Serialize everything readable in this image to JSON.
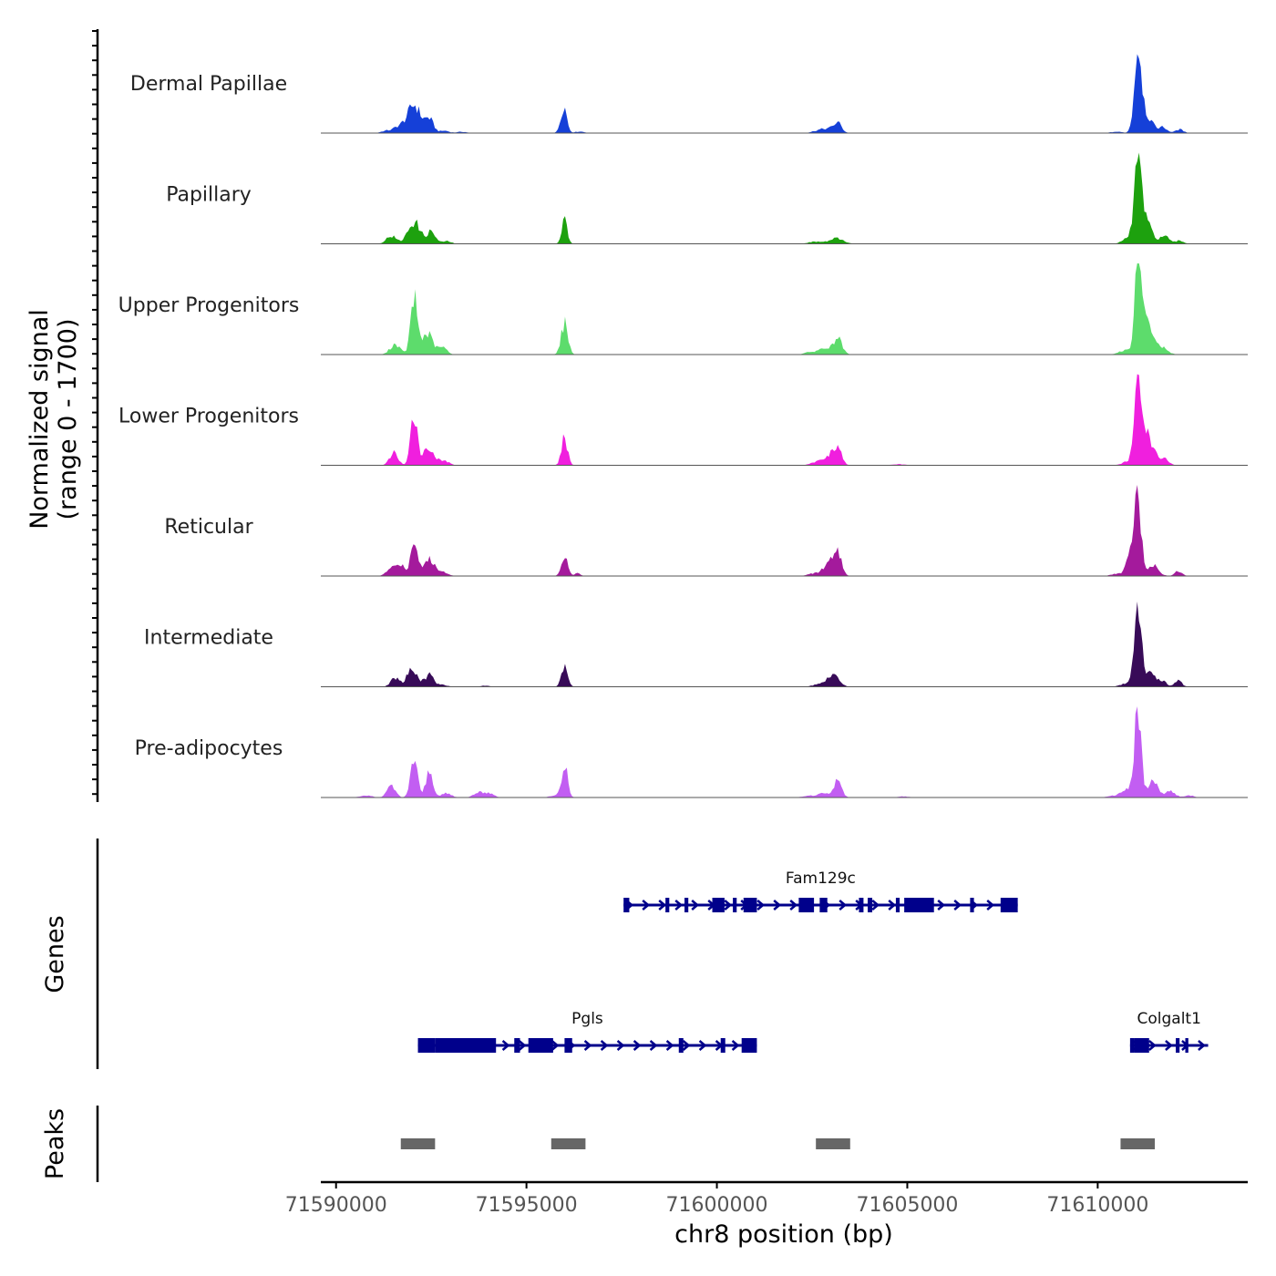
{
  "chart_data": {
    "type": "area",
    "title": "",
    "ylabel_line1": "Normalized signal",
    "ylabel_line2": "(range 0 - 1700)",
    "ylim": [
      0,
      1700
    ],
    "xlabel": "chr8 position (bp)",
    "xlim": [
      71589600,
      71613940
    ],
    "xticks": [
      71590000,
      71595000,
      71600000,
      71605000,
      71610000
    ],
    "xtick_labels": [
      "71590000",
      "71595000",
      "71600000",
      "71605000",
      "71610000"
    ],
    "tracks": [
      {
        "name": "Dermal Papillae",
        "color": "#1540D8",
        "peaks": [
          [
            71591300,
            40,
            120
          ],
          [
            71591650,
            120,
            150
          ],
          [
            71592050,
            540,
            170
          ],
          [
            71592450,
            260,
            110
          ],
          [
            71592850,
            45,
            120
          ],
          [
            71593300,
            25,
            120
          ],
          [
            71595980,
            520,
            80
          ],
          [
            71596400,
            30,
            120
          ],
          [
            71602650,
            40,
            150
          ],
          [
            71602950,
            80,
            180
          ],
          [
            71603180,
            170,
            100
          ],
          [
            71610500,
            25,
            150
          ],
          [
            71611060,
            1620,
            95
          ],
          [
            71611300,
            300,
            140
          ],
          [
            71611700,
            110,
            120
          ],
          [
            71612150,
            70,
            100
          ]
        ]
      },
      {
        "name": "Papillary",
        "color": "#1DA10E",
        "peaks": [
          [
            71591450,
            150,
            130
          ],
          [
            71592050,
            420,
            160
          ],
          [
            71592500,
            230,
            110
          ],
          [
            71592900,
            50,
            120
          ],
          [
            71596000,
            480,
            70
          ],
          [
            71602600,
            40,
            200
          ],
          [
            71603150,
            100,
            180
          ],
          [
            71610800,
            100,
            150
          ],
          [
            71611060,
            1680,
            95
          ],
          [
            71611300,
            360,
            140
          ],
          [
            71611750,
            150,
            120
          ],
          [
            71612150,
            60,
            100
          ]
        ]
      },
      {
        "name": "Upper Progenitors",
        "color": "#5DDC6C",
        "peaks": [
          [
            71591550,
            200,
            130
          ],
          [
            71592050,
            1050,
            90
          ],
          [
            71592400,
            400,
            140
          ],
          [
            71592800,
            140,
            110
          ],
          [
            71596000,
            600,
            90
          ],
          [
            71602450,
            40,
            150
          ],
          [
            71602850,
            120,
            180
          ],
          [
            71603180,
            280,
            110
          ],
          [
            71610700,
            80,
            150
          ],
          [
            71611060,
            1780,
            85
          ],
          [
            71611300,
            600,
            160
          ],
          [
            71611700,
            120,
            140
          ]
        ]
      },
      {
        "name": "Lower Progenitors",
        "color": "#F01FDE",
        "peaks": [
          [
            71591520,
            240,
            110
          ],
          [
            71592050,
            1020,
            85
          ],
          [
            71592430,
            330,
            150
          ],
          [
            71592850,
            80,
            120
          ],
          [
            71596000,
            520,
            80
          ],
          [
            71602650,
            70,
            160
          ],
          [
            71602980,
            190,
            140
          ],
          [
            71603180,
            300,
            100
          ],
          [
            71604750,
            20,
            200
          ],
          [
            71610800,
            70,
            150
          ],
          [
            71611080,
            1680,
            100
          ],
          [
            71611350,
            500,
            140
          ],
          [
            71611750,
            130,
            110
          ]
        ]
      },
      {
        "name": "Reticular",
        "color": "#A41A9C",
        "peaks": [
          [
            71591450,
            150,
            120
          ],
          [
            71591700,
            220,
            100
          ],
          [
            71592050,
            720,
            90
          ],
          [
            71592450,
            320,
            150
          ],
          [
            71592850,
            70,
            110
          ],
          [
            71596000,
            420,
            80
          ],
          [
            71596330,
            50,
            80
          ],
          [
            71602550,
            50,
            150
          ],
          [
            71602950,
            240,
            150
          ],
          [
            71603180,
            400,
            100
          ],
          [
            71610500,
            40,
            150
          ],
          [
            71610900,
            500,
            120
          ],
          [
            71611060,
            1400,
            85
          ],
          [
            71611450,
            230,
            140
          ],
          [
            71612120,
            90,
            100
          ]
        ]
      },
      {
        "name": "Intermediate",
        "color": "#380B58",
        "peaks": [
          [
            71591550,
            180,
            110
          ],
          [
            71592000,
            370,
            130
          ],
          [
            71592450,
            230,
            120
          ],
          [
            71592800,
            40,
            110
          ],
          [
            71593900,
            20,
            120
          ],
          [
            71596000,
            390,
            80
          ],
          [
            71602650,
            40,
            150
          ],
          [
            71603050,
            260,
            150
          ],
          [
            71610750,
            60,
            150
          ],
          [
            71611060,
            1400,
            100
          ],
          [
            71611380,
            240,
            150
          ],
          [
            71611720,
            90,
            100
          ],
          [
            71612120,
            120,
            90
          ]
        ]
      },
      {
        "name": "Pre-adipocytes",
        "color": "#C25EF2",
        "peaks": [
          [
            71590800,
            40,
            150
          ],
          [
            71591450,
            220,
            110
          ],
          [
            71592050,
            700,
            90
          ],
          [
            71592450,
            520,
            90
          ],
          [
            71592900,
            90,
            120
          ],
          [
            71593750,
            110,
            120
          ],
          [
            71594050,
            80,
            110
          ],
          [
            71595700,
            40,
            100
          ],
          [
            71596000,
            650,
            80
          ],
          [
            71602400,
            30,
            150
          ],
          [
            71602800,
            80,
            160
          ],
          [
            71603180,
            330,
            100
          ],
          [
            71604900,
            20,
            150
          ],
          [
            71610400,
            30,
            150
          ],
          [
            71610800,
            180,
            150
          ],
          [
            71611060,
            1670,
            85
          ],
          [
            71611450,
            350,
            120
          ],
          [
            71611900,
            120,
            130
          ],
          [
            71612400,
            40,
            120
          ]
        ]
      }
    ],
    "genes": [
      {
        "name": "Fam129c",
        "strand": "+",
        "row": 0,
        "start": 71597550,
        "end": 71607900,
        "exons": [
          [
            71597550,
            71597700
          ],
          [
            71598650,
            71598750
          ],
          [
            71599150,
            71599250
          ],
          [
            71599880,
            71600200
          ],
          [
            71600420,
            71600520
          ],
          [
            71600700,
            71601050
          ],
          [
            71602150,
            71602550
          ],
          [
            71602700,
            71602900
          ],
          [
            71603730,
            71603850
          ],
          [
            71603960,
            71604080
          ],
          [
            71604700,
            71604800
          ],
          [
            71604920,
            71605700
          ],
          [
            71606650,
            71606750
          ],
          [
            71607450,
            71607900
          ]
        ]
      },
      {
        "name": "Pgls",
        "strand": "+",
        "row": 1,
        "start": 71592150,
        "end": 71601050,
        "exons": [
          [
            71592150,
            71592600
          ],
          [
            71592600,
            71594200
          ],
          [
            71594680,
            71594830
          ],
          [
            71595050,
            71595700
          ],
          [
            71596000,
            71596200
          ],
          [
            71599000,
            71599120
          ],
          [
            71600100,
            71600220
          ],
          [
            71600650,
            71601050
          ]
        ]
      },
      {
        "name": "Colgalt1",
        "strand": "+",
        "row": 1,
        "start": 71610850,
        "end": 71612900,
        "exons": [
          [
            71610850,
            71610950
          ],
          [
            71610950,
            71611350
          ],
          [
            71612050,
            71612150
          ],
          [
            71612300,
            71612380
          ]
        ]
      }
    ],
    "peak_regions": [
      [
        71591700,
        71592600
      ],
      [
        71595650,
        71596550
      ],
      [
        71602600,
        71603500
      ],
      [
        71610600,
        71611500
      ]
    ],
    "panel_labels": [
      "Genes",
      "Peaks"
    ]
  }
}
